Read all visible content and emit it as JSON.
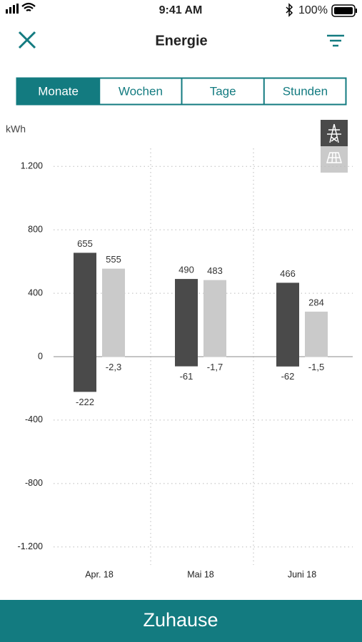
{
  "status_bar": {
    "time": "9:41 AM",
    "battery": "100%"
  },
  "header": {
    "title": "Energie"
  },
  "tabs": {
    "items": [
      "Monate",
      "Wochen",
      "Tage",
      "Stunden"
    ],
    "selected": 0
  },
  "chart_data": {
    "type": "bar",
    "y_label": "kWh",
    "categories": [
      "Apr. 18",
      "Mai 18",
      "Juni 18"
    ],
    "series": [
      {
        "color": "#4a4a4a",
        "values": [
          655,
          490,
          466
        ]
      },
      {
        "color": "#4a4a4a",
        "values": [
          -222,
          -61,
          -62
        ]
      },
      {
        "color": "#cacaca",
        "values": [
          555,
          483,
          284
        ]
      },
      {
        "color": "#cacaca",
        "values": [
          -2.3,
          -1.7,
          -1.5
        ],
        "value_labels": [
          "-2,3",
          "-1,7",
          "-1,5"
        ]
      }
    ],
    "ylim": [
      -1300,
      1300
    ],
    "yticks": [
      {
        "value": -1200,
        "label": "-1.200"
      },
      -800,
      -400,
      0,
      400,
      800,
      {
        "value": 1200,
        "label": "1.200"
      }
    ],
    "grid": true
  },
  "footer": {
    "button": "Zuhause"
  }
}
